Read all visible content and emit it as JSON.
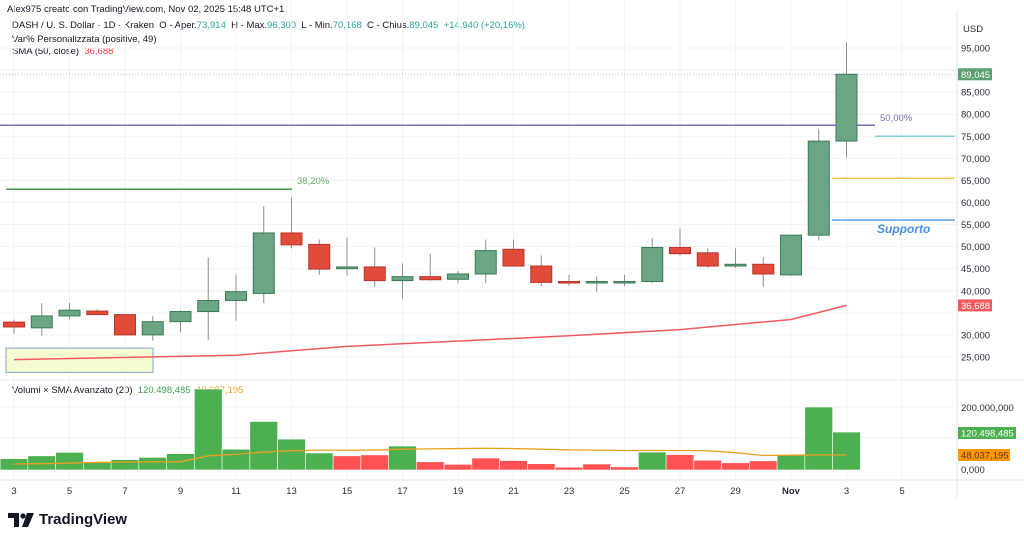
{
  "header": {
    "credit": "Alex975 creato con TradingView.com, Nov 02, 2025 15:48 UTC+1"
  },
  "legend": {
    "symbol": "DASH / U. S. Dollar · 1D · Kraken",
    "open_label": "O - Aper.",
    "open": "73,914",
    "high_label": "H - Max.",
    "high": "96,300",
    "low_label": "L - Min.",
    "low": "70,168",
    "close_label": "C - Chius.",
    "close": "89,045",
    "change": "+14,940 (+20,16%)",
    "indicator1": "Var% Personalizzata (positive, 49)",
    "sma_label": "SMA (50, close)",
    "sma_value": "36,688",
    "volume_label": "Volumi × SMA Avanzato (20)",
    "volume_value": "120.498,485",
    "volume_sma_value": "48.037,195"
  },
  "annotations": {
    "fib_382": "38,20%",
    "fib_50": "50,00%",
    "support": "Supporto"
  },
  "price_axis": {
    "currency": "USD",
    "last_price_badge": "89,045",
    "sma_badge": "36,688"
  },
  "volume_axis": {
    "volume_badge": "120.498,485",
    "sma_badge": "48.037,195"
  },
  "brand": {
    "name": "TradingView"
  },
  "colors": {
    "up": "#6ba583",
    "down": "#e04b3a",
    "up_border": "#3b7a56",
    "down_border": "#b8352a",
    "vol_up": "#4caf50",
    "vol_down": "#ff5252",
    "sma": "#f05a5f",
    "vol_sma": "#e9a020",
    "fib_382": "#4a9a4a",
    "fib_50": "#7b6fb5",
    "cyan": "#80d0e0",
    "yellow": "#f7c542",
    "support": "#5e9de8"
  },
  "chart_data": [
    {
      "type": "candlestick",
      "title": "DASH / U. S. Dollar · 1D · Kraken",
      "ylabel": "USD",
      "ylim": [
        21000,
        99000
      ],
      "yticks": [
        25000,
        30000,
        35000,
        40000,
        45000,
        50000,
        55000,
        60000,
        65000,
        70000,
        75000,
        80000,
        85000,
        90000,
        95000
      ],
      "ytick_labels": [
        "25,000",
        "30,000",
        "35,000",
        "40,000",
        "45,000",
        "50,000",
        "55,000",
        "60,000",
        "65,000",
        "70,000",
        "75,000",
        "80,000",
        "85,000",
        "90,000",
        "95,000"
      ],
      "xtick_labels": [
        "3",
        "5",
        "7",
        "9",
        "11",
        "13",
        "15",
        "17",
        "19",
        "21",
        "23",
        "25",
        "27",
        "29",
        "Nov",
        "3",
        "5"
      ],
      "x": [
        "Oct 3",
        "Oct 4",
        "Oct 5",
        "Oct 6",
        "Oct 7",
        "Oct 8",
        "Oct 9",
        "Oct 10",
        "Oct 11",
        "Oct 12",
        "Oct 13",
        "Oct 14",
        "Oct 15",
        "Oct 16",
        "Oct 17",
        "Oct 18",
        "Oct 19",
        "Oct 20",
        "Oct 21",
        "Oct 22",
        "Oct 23",
        "Oct 24",
        "Oct 25",
        "Oct 26",
        "Oct 27",
        "Oct 28",
        "Oct 29",
        "Oct 30",
        "Oct 31",
        "Nov 1",
        "Nov 2"
      ],
      "ohlc": [
        [
          32900,
          33500,
          30300,
          31800
        ],
        [
          31600,
          37200,
          29700,
          34300
        ],
        [
          34300,
          37200,
          33600,
          35600
        ],
        [
          35400,
          35800,
          34600,
          34600
        ],
        [
          34600,
          34600,
          30000,
          30000
        ],
        [
          30000,
          34300,
          28700,
          33000
        ],
        [
          33000,
          35600,
          30600,
          35300
        ],
        [
          35300,
          47500,
          28900,
          37800
        ],
        [
          37800,
          43600,
          33200,
          39800
        ],
        [
          39400,
          59200,
          37200,
          53100
        ],
        [
          53100,
          61100,
          49600,
          50400
        ],
        [
          50500,
          51600,
          43600,
          44900
        ],
        [
          45000,
          52000,
          43400,
          45400
        ],
        [
          45400,
          49800,
          40900,
          42300
        ],
        [
          42300,
          46200,
          38200,
          43200
        ],
        [
          43200,
          48400,
          42300,
          42500
        ],
        [
          42600,
          44500,
          41700,
          43800
        ],
        [
          43800,
          51600,
          41700,
          49100
        ],
        [
          49400,
          51600,
          45900,
          45600
        ],
        [
          45600,
          48000,
          41100,
          41900
        ],
        [
          42100,
          43600,
          41100,
          41900
        ],
        [
          41900,
          43200,
          39800,
          42100
        ],
        [
          42100,
          43600,
          41100,
          42100
        ],
        [
          42100,
          52000,
          41700,
          49800
        ],
        [
          49800,
          54100,
          48000,
          48400
        ],
        [
          48600,
          49600,
          45200,
          45600
        ],
        [
          45600,
          49600,
          45200,
          46000
        ],
        [
          46000,
          47600,
          40900,
          43800
        ],
        [
          43600,
          52400,
          43400,
          52600
        ],
        [
          52600,
          76700,
          51400,
          73900
        ],
        [
          73914,
          96300,
          70168,
          89045
        ]
      ],
      "overlays": [
        {
          "name": "SMA (50, close)",
          "color": "#f05a5f",
          "points": [
            [
              0,
              24400
            ],
            [
              8,
              25400
            ],
            [
              12,
              27400
            ],
            [
              20,
              29800
            ],
            [
              24,
              31200
            ],
            [
              28,
              33500
            ],
            [
              30,
              36688
            ]
          ]
        },
        {
          "name": "Fib 38,20%",
          "price": 63000,
          "x_range": [
            0,
            10
          ]
        },
        {
          "name": "Fib 50,00%",
          "price": 77500,
          "x_range": [
            0,
            31
          ]
        },
        {
          "name": "Level cyan",
          "price": 75000,
          "x_range": [
            31,
            36
          ]
        },
        {
          "name": "Level yellow",
          "price": 65500,
          "x_range": [
            30,
            36
          ]
        },
        {
          "name": "Supporto",
          "price": 56000,
          "x_range": [
            30,
            36
          ]
        },
        {
          "name": "Highlighted range",
          "price_range": [
            21500,
            27000
          ],
          "x_range": [
            -0.3,
            5
          ]
        }
      ]
    },
    {
      "type": "bar",
      "title": "Volumi × SMA Avanzato (20)",
      "ylim": [
        0,
        240000000
      ],
      "ytick_labels": [
        "0,000",
        "100.000,000",
        "200.000,000"
      ],
      "categories": [
        "Oct 3",
        "Oct 4",
        "Oct 5",
        "Oct 6",
        "Oct 7",
        "Oct 8",
        "Oct 9",
        "Oct 10",
        "Oct 11",
        "Oct 12",
        "Oct 13",
        "Oct 14",
        "Oct 15",
        "Oct 16",
        "Oct 17",
        "Oct 18",
        "Oct 19",
        "Oct 20",
        "Oct 21",
        "Oct 22",
        "Oct 23",
        "Oct 24",
        "Oct 25",
        "Oct 26",
        "Oct 27",
        "Oct 28",
        "Oct 29",
        "Oct 30",
        "Oct 31",
        "Nov 1",
        "Nov 2"
      ],
      "series": [
        {
          "name": "Volume",
          "values": [
            36000000,
            45000000,
            56000000,
            24000000,
            33000000,
            40000000,
            52000000,
            258000000,
            66000000,
            154000000,
            98000000,
            54000000,
            45000000,
            48000000,
            76000000,
            26000000,
            18000000,
            38000000,
            30000000,
            20000000,
            9000000,
            19000000,
            10000000,
            57000000,
            49000000,
            31000000,
            23000000,
            29000000,
            49000000,
            200000000,
            120498485
          ],
          "up": [
            true,
            true,
            true,
            true,
            true,
            true,
            true,
            true,
            true,
            true,
            true,
            true,
            false,
            false,
            true,
            false,
            false,
            false,
            false,
            false,
            false,
            false,
            false,
            true,
            false,
            false,
            false,
            false,
            true,
            true,
            true
          ]
        },
        {
          "name": "SMA (20)",
          "values": [
            19000000,
            20000000,
            22000000,
            24000000,
            25000000,
            26000000,
            26000000,
            45000000,
            50000000,
            57000000,
            61000000,
            63000000,
            63000000,
            63000000,
            66000000,
            67000000,
            68000000,
            69000000,
            68000000,
            66000000,
            64000000,
            63000000,
            62000000,
            62000000,
            62000000,
            61000000,
            55000000,
            46000000,
            47000000,
            48000000,
            48037195
          ]
        }
      ]
    }
  ]
}
